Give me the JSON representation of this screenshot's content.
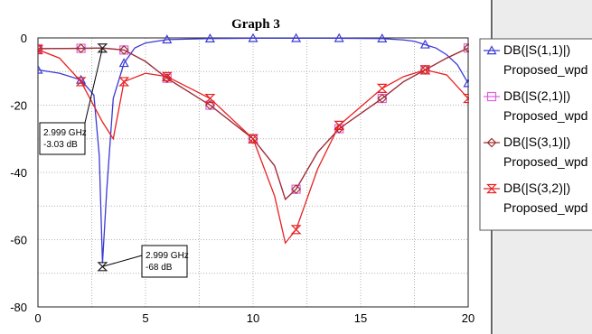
{
  "chart_data": {
    "type": "line",
    "title": "Graph 3",
    "xlabel": "",
    "ylabel": "",
    "xlim": [
      0,
      20
    ],
    "ylim": [
      -80,
      0
    ],
    "x_ticks": [
      0,
      5,
      10,
      15,
      20
    ],
    "y_ticks": [
      0,
      -20,
      -40,
      -60,
      -80
    ],
    "grid": true,
    "legend_position": "right",
    "series": [
      {
        "name": "DB(|S(1,1)|)",
        "subname": "Proposed_wpd",
        "color": "#3a3ad6",
        "marker": "triangle-up",
        "x": [
          0,
          1,
          2,
          2.6,
          2.85,
          3,
          3.2,
          3.5,
          4,
          4.5,
          5,
          6,
          8,
          10,
          12,
          14,
          16,
          17,
          17.5,
          18,
          18.5,
          19,
          19.5,
          20
        ],
        "y": [
          -9.5,
          -10.5,
          -12.5,
          -17,
          -35,
          -67,
          -45,
          -18,
          -7.5,
          -3,
          -1.5,
          -0.5,
          -0.2,
          -0.1,
          -0.1,
          -0.1,
          -0.2,
          -0.6,
          -1,
          -2,
          -3,
          -5,
          -8,
          -13.5
        ]
      },
      {
        "name": "DB(|S(2,1)|)",
        "subname": "Proposed_wpd",
        "color": "#e060e0",
        "marker": "square",
        "x": [
          0,
          2,
          3,
          4,
          5,
          6,
          8,
          10,
          11,
          11.5,
          12,
          13,
          14,
          16,
          17,
          18,
          19,
          20
        ],
        "y": [
          -3.2,
          -3.1,
          -3.0,
          -3.6,
          -7,
          -12,
          -20,
          -30,
          -38,
          -48,
          -45,
          -34,
          -27,
          -18,
          -13,
          -9.5,
          -6,
          -3
        ]
      },
      {
        "name": "DB(|S(3,1)|)",
        "subname": "Proposed_wpd",
        "color": "#9b3030",
        "marker": "diamond",
        "x": [
          0,
          2,
          3,
          4,
          5,
          6,
          8,
          10,
          11,
          11.5,
          12,
          13,
          14,
          16,
          17,
          18,
          19,
          20
        ],
        "y": [
          -3.2,
          -3.1,
          -3.0,
          -3.6,
          -7,
          -12,
          -20,
          -30,
          -38,
          -48,
          -45,
          -34,
          -27,
          -18,
          -13,
          -9.5,
          -6,
          -3
        ]
      },
      {
        "name": "DB(|S(3,2)|)",
        "subname": "Proposed_wpd",
        "color": "#e82020",
        "marker": "hourglass",
        "x": [
          0,
          1,
          2,
          3,
          3.5,
          4,
          5,
          6,
          8,
          10,
          11,
          11.5,
          12,
          13,
          14,
          16,
          17,
          18,
          19,
          20
        ],
        "y": [
          -3.5,
          -6,
          -13,
          -25,
          -30,
          -13,
          -10.5,
          -11.5,
          -18,
          -30,
          -47,
          -61,
          -57,
          -39,
          -26,
          -15,
          -11.5,
          -9.5,
          -11,
          -18
        ]
      }
    ],
    "markers": [
      {
        "x": 2.999,
        "y": -3.03,
        "label_line1": "2.999 GHz",
        "label_line2": "-3.03 dB"
      },
      {
        "x": 2.999,
        "y": -68,
        "label_line1": "2.999 GHz",
        "label_line2": "-68 dB"
      }
    ]
  }
}
